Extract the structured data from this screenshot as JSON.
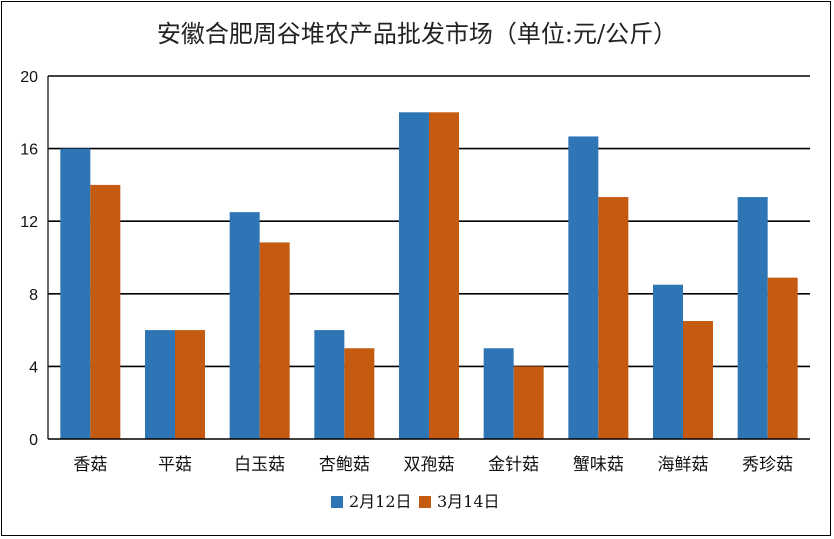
{
  "chart_data": {
    "type": "bar",
    "title": "安徽合肥周谷堆农产品批发市场（单位:元/公斤）",
    "categories": [
      "香菇",
      "平菇",
      "白玉菇",
      "杏鲍菇",
      "双孢菇",
      "金针菇",
      "蟹味菇",
      "海鲜菇",
      "秀珍菇"
    ],
    "series": [
      {
        "name": "2月12日",
        "color": "#2e75b6",
        "values": [
          16,
          6,
          12.5,
          6,
          18,
          5,
          16.67,
          8.5,
          13.33
        ]
      },
      {
        "name": "3月14日",
        "color": "#c55a11",
        "values": [
          14,
          6,
          10.83,
          5,
          18,
          4,
          13.33,
          6.5,
          8.89
        ]
      }
    ],
    "ylim": [
      0,
      20
    ],
    "yticks": [
      "0",
      "4",
      "8",
      "12",
      "16",
      "20"
    ],
    "grid": true,
    "legend_position": "bottom"
  }
}
